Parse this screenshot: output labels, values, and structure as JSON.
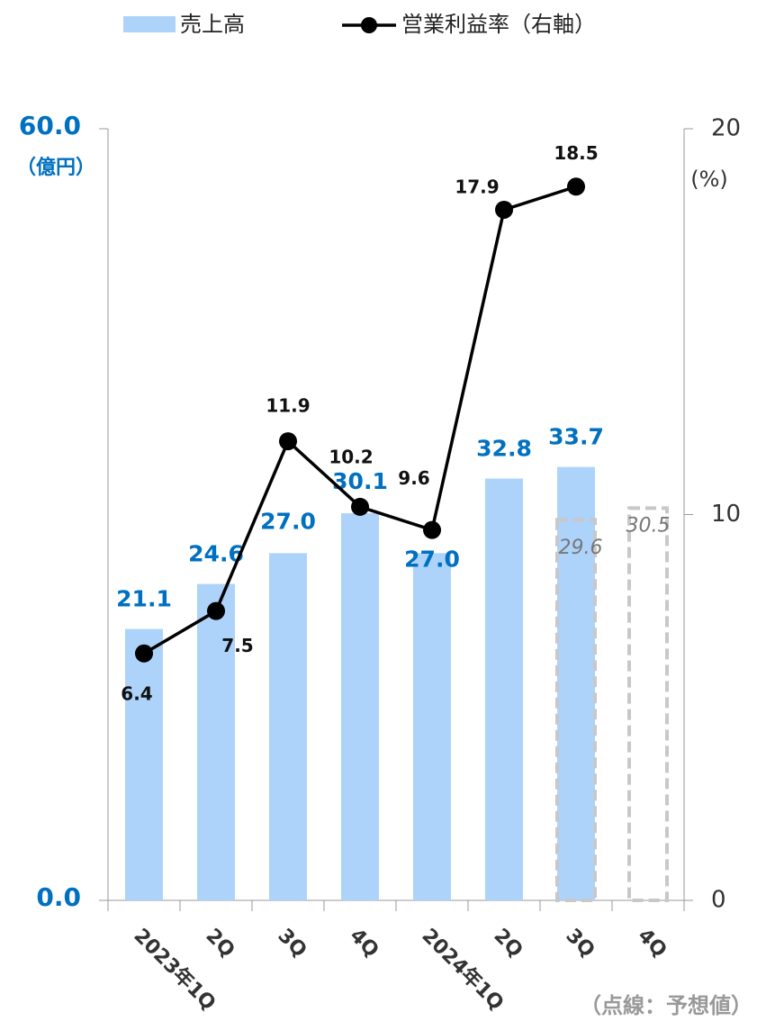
{
  "chart_data": {
    "type": "bar+line",
    "categories": [
      "2023年1Q",
      "2Q",
      "3Q",
      "4Q",
      "2024年1Q",
      "2Q",
      "3Q",
      "4Q"
    ],
    "series": [
      {
        "name": "売上高",
        "color": "#add3fb",
        "label_color": "#0070c0",
        "values": [
          21.1,
          24.6,
          27.0,
          30.1,
          27.0,
          32.8,
          33.7,
          null
        ],
        "value_labels": [
          "21.1",
          "24.6",
          "27.0",
          "30.1",
          "27.0",
          "32.8",
          "33.7",
          null
        ]
      },
      {
        "name": "営業利益率（右軸）",
        "color": "#000000",
        "axis": "y2",
        "values": [
          6.4,
          7.5,
          11.9,
          10.2,
          9.6,
          17.9,
          18.5,
          null
        ]
      },
      {
        "color": "#c8c8c8",
        "style": "dashed",
        "values": [
          null,
          null,
          null,
          null,
          null,
          null,
          29.6,
          30.5
        ]
      }
    ],
    "y_label": "（億円）",
    "y2_label": "(%)",
    "ylim": [
      0,
      60
    ],
    "yticks": [
      {
        "value": 0,
        "label": "0.0"
      },
      {
        "value": 60,
        "label": "60.0"
      }
    ],
    "y2lim": [
      0,
      20
    ],
    "y2ticks": [
      0,
      10,
      20
    ],
    "note": "（点線：予想値）",
    "legend": "top"
  }
}
